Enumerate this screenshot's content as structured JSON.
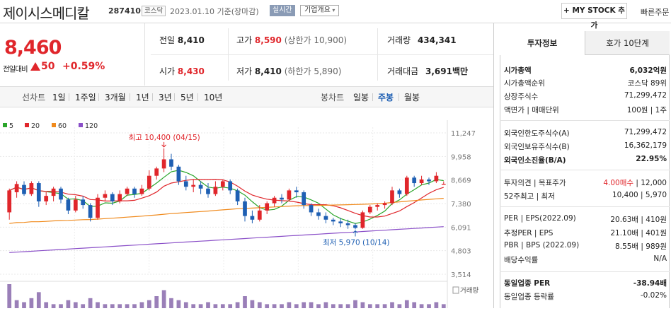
{
  "header": {
    "title": "제이시스메디칼",
    "code": "287410",
    "market": "코스닥",
    "date": "2023.01.10 기준(장마감)",
    "live_label": "실시간",
    "corp_label": "기업개요",
    "mystock_label": "+ MY STOCK 추가",
    "quick_label": "빠른주문"
  },
  "price": {
    "current": "8,460",
    "diff_label": "전일대비",
    "diff": "50",
    "pct": "+0.59%"
  },
  "quote": {
    "prev_label": "전일",
    "prev": "8,410",
    "high_label": "고가",
    "high": "8,590",
    "upper_label": "(상한가",
    "upper": "10,900",
    "upper_close": ")",
    "volume_label": "거래량",
    "volume": "434,341",
    "open_label": "시가",
    "open": "8,430",
    "low_label": "저가",
    "low": "8,410",
    "lower_label": "(하한가",
    "lower": "5,890",
    "lower_close": ")",
    "amount_label": "거래대금",
    "amount": "3,691",
    "amount_unit": "백만"
  },
  "toolbar": {
    "line_label": "선차트",
    "line_tabs": [
      "1일",
      "1주일",
      "3개월",
      "1년",
      "3년",
      "5년",
      "10년"
    ],
    "candle_label": "봉차트",
    "candle_tabs": [
      "일봉",
      "주봉",
      "월봉"
    ],
    "active_candle": "주봉"
  },
  "chart_data": {
    "type": "candlestick",
    "legend": [
      {
        "name": "5",
        "color": "#2aa52a"
      },
      {
        "name": "20",
        "color": "#e0262b"
      },
      {
        "name": "60",
        "color": "#f08a1c"
      },
      {
        "name": "120",
        "color": "#8a4fc8"
      }
    ],
    "yticks": [
      "11,247",
      "9,958",
      "8,669",
      "7,380",
      "6,091",
      "4,803",
      "3,514"
    ],
    "ylim": [
      3514,
      11247
    ],
    "high_annotation": "최고 10,400 (04/15)",
    "low_annotation": "최저 5,970 (10/14)",
    "volume_label": "거래량",
    "candles": [
      [
        6900,
        8100,
        6500,
        8200
      ],
      [
        8000,
        8450,
        7700,
        8600
      ],
      [
        8400,
        7900,
        7800,
        8600
      ],
      [
        7900,
        8500,
        7800,
        8600
      ],
      [
        8500,
        7500,
        7200,
        8600
      ],
      [
        7500,
        7800,
        7300,
        8000
      ],
      [
        7800,
        8200,
        7500,
        8300
      ],
      [
        8200,
        7600,
        7400,
        8300
      ],
      [
        7600,
        7000,
        6800,
        7700
      ],
      [
        7000,
        7600,
        6900,
        7800
      ],
      [
        7600,
        7300,
        7100,
        7800
      ],
      [
        7300,
        6600,
        6400,
        7400
      ],
      [
        6600,
        7700,
        6500,
        7900
      ],
      [
        7700,
        7900,
        7500,
        8100
      ],
      [
        7900,
        7500,
        7300,
        8000
      ],
      [
        7500,
        7900,
        7400,
        8100
      ],
      [
        7900,
        8200,
        7800,
        8300
      ],
      [
        8200,
        7900,
        7700,
        8300
      ],
      [
        7900,
        8200,
        7800,
        8400
      ],
      [
        8200,
        8900,
        8100,
        9200
      ],
      [
        8900,
        9300,
        8700,
        9400
      ],
      [
        9300,
        9800,
        9100,
        10400
      ],
      [
        9800,
        9400,
        9200,
        10100
      ],
      [
        9400,
        8600,
        8400,
        9500
      ],
      [
        8600,
        8300,
        8100,
        8900
      ],
      [
        8300,
        8400,
        8000,
        8700
      ],
      [
        8400,
        8200,
        7900,
        8600
      ],
      [
        8200,
        7900,
        7700,
        8500
      ],
      [
        7900,
        8300,
        7800,
        8600
      ],
      [
        8300,
        8600,
        8100,
        8700
      ],
      [
        8600,
        8100,
        7900,
        8700
      ],
      [
        8100,
        7500,
        7300,
        8200
      ],
      [
        7500,
        6700,
        6400,
        7700
      ],
      [
        6700,
        6500,
        6300,
        7000
      ],
      [
        6500,
        7000,
        6400,
        7300
      ],
      [
        7000,
        7400,
        6800,
        7500
      ],
      [
        7400,
        7700,
        7200,
        7800
      ],
      [
        7700,
        7600,
        7400,
        7900
      ],
      [
        7600,
        8100,
        7500,
        8200
      ],
      [
        8100,
        8000,
        7700,
        8300
      ],
      [
        8000,
        7300,
        7100,
        8100
      ],
      [
        7300,
        6900,
        6700,
        7400
      ],
      [
        6900,
        6700,
        6500,
        7100
      ],
      [
        6700,
        6500,
        6300,
        6900
      ],
      [
        6500,
        6400,
        6200,
        6600
      ],
      [
        6400,
        6300,
        6100,
        6600
      ],
      [
        6300,
        6200,
        6000,
        6500
      ],
      [
        6200,
        6050,
        5970,
        6300
      ],
      [
        6050,
        6900,
        6000,
        7000
      ],
      [
        6900,
        7200,
        6800,
        7300
      ],
      [
        7200,
        7300,
        7000,
        7400
      ],
      [
        7300,
        7400,
        7100,
        7500
      ],
      [
        7400,
        8100,
        7300,
        8300
      ],
      [
        8100,
        7900,
        7700,
        8200
      ],
      [
        7900,
        8800,
        7800,
        8900
      ],
      [
        8800,
        8500,
        8300,
        8900
      ],
      [
        8500,
        8700,
        8400,
        8900
      ],
      [
        8700,
        8600,
        8400,
        8800
      ],
      [
        8600,
        8900,
        8500,
        9100
      ],
      [
        8410,
        8460,
        8410,
        8590
      ]
    ],
    "volumes": [
      12,
      4,
      3,
      5,
      8,
      3,
      2,
      2,
      4,
      3,
      2,
      5,
      3,
      2,
      2,
      2,
      2,
      2,
      3,
      4,
      6,
      9,
      5,
      4,
      3,
      2,
      2,
      3,
      2,
      2,
      2,
      3,
      6,
      4,
      3,
      2,
      2,
      2,
      3,
      2,
      3,
      3,
      2,
      3,
      2,
      2,
      2,
      4,
      3,
      2,
      2,
      2,
      3,
      2,
      4,
      3,
      2,
      2,
      3,
      2
    ]
  },
  "panel": {
    "tab1": "투자정보",
    "tab2": "호가 10단계",
    "rows": [
      {
        "label": "시가총액",
        "value": "6,032억원",
        "bold": true
      },
      {
        "label": "시가총액순위",
        "value": "코스닥 89위"
      },
      {
        "label": "상장주식수",
        "value": "71,299,472"
      },
      {
        "label": "액면가 | 매매단위",
        "value": "100원 | 1주"
      },
      {
        "label": "외국인한도주식수(A)",
        "value": "71,299,472"
      },
      {
        "label": "외국인보유주식수(B)",
        "value": "16,362,179"
      },
      {
        "label": "외국인소진율(B/A)",
        "value": "22.95%",
        "bold": true
      },
      {
        "label": "투자의견 | 목표주가",
        "value_red": "4.00매수",
        "value": "| 12,000"
      },
      {
        "label": "52주최고 | 최저",
        "value": "10,400 | 5,970"
      },
      {
        "label": "PER | EPS(2022.09)",
        "value": "20.63배 | 410원"
      },
      {
        "label": "추정PER | EPS",
        "value": "21.10배 | 401원"
      },
      {
        "label": "PBR | BPS (2022.09)",
        "value": "8.55배 | 989원"
      },
      {
        "label": "배당수익률",
        "value": "N/A"
      },
      {
        "label": "동일업종 PER",
        "value": "-38.94배",
        "bold": true
      },
      {
        "label": "동일업종 등락률",
        "value": "-0.02%"
      }
    ]
  }
}
